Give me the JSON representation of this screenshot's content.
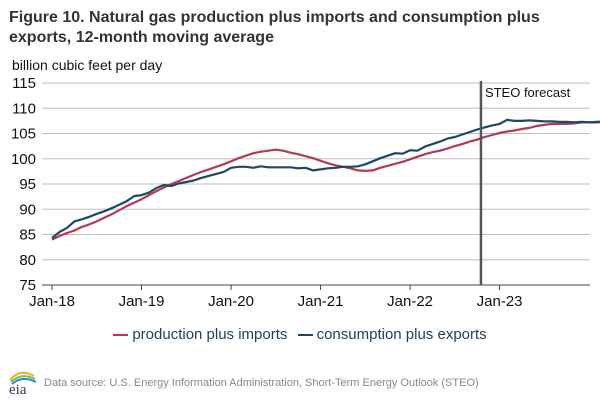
{
  "chart_data": {
    "type": "line",
    "title": "Figure 10. Natural gas production plus imports and consumption plus exports, 12-month moving average",
    "ylabel": "billion cubic feet per day",
    "xlabel": "",
    "ylim": [
      75,
      115
    ],
    "yticks": [
      "75",
      "80",
      "85",
      "90",
      "95",
      "100",
      "105",
      "110",
      "115"
    ],
    "xticks": [
      "Jan-18",
      "Jan-19",
      "Jan-20",
      "Jan-21",
      "Jan-22",
      "Jan-23"
    ],
    "grid": true,
    "forecast_label": "STEO forecast",
    "forecast_start_month_index": 57.5,
    "legend_position": "bottom",
    "series": [
      {
        "name": "production plus imports",
        "color": "#b5394f",
        "values": [
          84.0,
          84.7,
          85.3,
          85.8,
          86.5,
          87.0,
          87.6,
          88.3,
          89.0,
          89.8,
          90.6,
          91.3,
          92.0,
          92.8,
          93.6,
          94.3,
          95.0,
          95.6,
          96.2,
          96.8,
          97.4,
          97.9,
          98.4,
          98.9,
          99.5,
          100.1,
          100.6,
          101.1,
          101.4,
          101.6,
          101.8,
          101.6,
          101.2,
          100.9,
          100.5,
          100.1,
          99.6,
          99.1,
          98.7,
          98.4,
          98.1,
          97.7,
          97.6,
          97.7,
          98.2,
          98.6,
          99.0,
          99.4,
          99.9,
          100.4,
          100.9,
          101.3,
          101.6,
          102.0,
          102.5,
          102.9,
          103.4,
          103.8,
          104.3,
          104.7,
          105.1,
          105.4,
          105.6,
          105.9,
          106.1,
          106.5,
          106.7,
          106.9,
          106.9,
          106.9,
          107.0,
          107.2,
          107.2,
          107.2,
          107.3,
          107.3
        ]
      },
      {
        "name": "consumption plus exports",
        "color": "#1b4a63",
        "values": [
          84.3,
          85.5,
          86.3,
          87.6,
          88.0,
          88.5,
          89.1,
          89.6,
          90.2,
          90.9,
          91.6,
          92.6,
          92.8,
          93.3,
          94.2,
          94.8,
          94.6,
          95.1,
          95.4,
          95.7,
          96.2,
          96.6,
          97.0,
          97.4,
          98.2,
          98.4,
          98.4,
          98.2,
          98.5,
          98.3,
          98.3,
          98.3,
          98.3,
          98.1,
          98.2,
          97.7,
          97.9,
          98.1,
          98.2,
          98.4,
          98.4,
          98.5,
          98.9,
          99.5,
          100.1,
          100.6,
          101.1,
          101.0,
          101.7,
          101.6,
          102.4,
          102.9,
          103.4,
          104.0,
          104.3,
          104.8,
          105.3,
          105.8,
          106.2,
          106.6,
          106.9,
          107.7,
          107.5,
          107.5,
          107.6,
          107.5,
          107.4,
          107.4,
          107.3,
          107.3,
          107.2,
          107.3,
          107.2,
          107.3,
          107.4,
          107.4
        ]
      }
    ]
  },
  "legend": {
    "item1": "production plus imports",
    "item2": "consumption plus exports"
  },
  "footer": {
    "source": "Data source: U.S. Energy Information Administration, Short-Term Energy Outlook (STEO)",
    "logo_text": "eia"
  }
}
